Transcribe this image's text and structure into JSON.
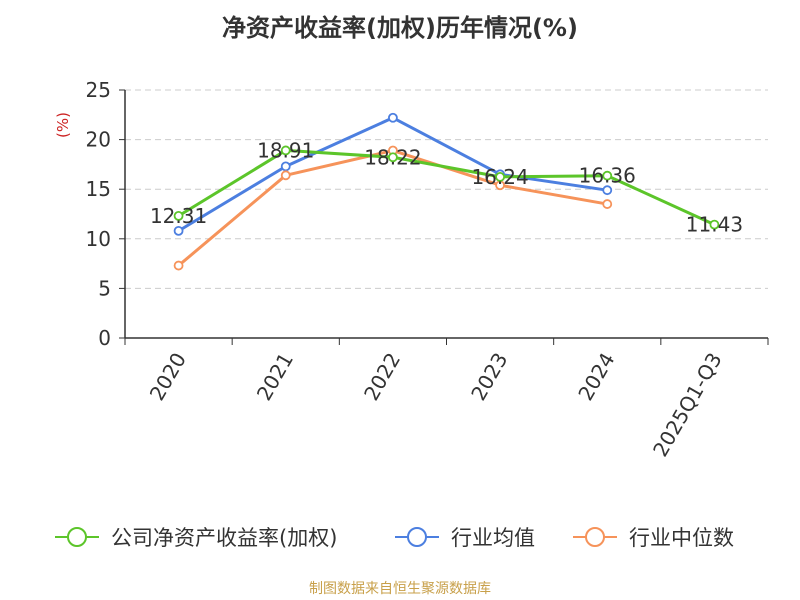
{
  "chart_data": {
    "type": "line",
    "title": "净资产收益率(加权)历年情况(%)",
    "ylabel": "(%)",
    "categories": [
      "2020",
      "2021",
      "2022",
      "2023",
      "2024",
      "2025Q1-Q3"
    ],
    "ylim": [
      0,
      25
    ],
    "yticks": [
      0,
      5,
      10,
      15,
      20,
      25
    ],
    "grid": true,
    "legend_position": "bottom",
    "series": [
      {
        "name": "公司净资产收益率(加权)",
        "color": "#5cc52a",
        "values": [
          12.31,
          18.91,
          18.22,
          16.24,
          16.36,
          11.43
        ],
        "labeled": true
      },
      {
        "name": "行业均值",
        "color": "#4c7fe0",
        "values": [
          10.8,
          17.3,
          22.2,
          16.5,
          14.9,
          null
        ],
        "labeled": false
      },
      {
        "name": "行业中位数",
        "color": "#f6935a",
        "values": [
          7.3,
          16.4,
          18.9,
          15.4,
          13.5,
          null
        ],
        "labeled": false
      }
    ]
  },
  "footer": {
    "source": "制图数据来自恒生聚源数据库"
  }
}
